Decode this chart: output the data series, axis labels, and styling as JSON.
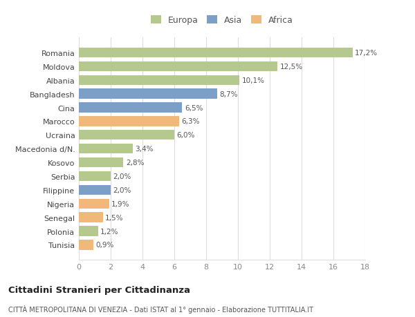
{
  "categories": [
    "Tunisia",
    "Polonia",
    "Senegal",
    "Nigeria",
    "Filippine",
    "Serbia",
    "Kosovo",
    "Macedonia d/N.",
    "Ucraina",
    "Marocco",
    "Cina",
    "Bangladesh",
    "Albania",
    "Moldova",
    "Romania"
  ],
  "values": [
    0.9,
    1.2,
    1.5,
    1.9,
    2.0,
    2.0,
    2.8,
    3.4,
    6.0,
    6.3,
    6.5,
    8.7,
    10.1,
    12.5,
    17.2
  ],
  "labels": [
    "0,9%",
    "1,2%",
    "1,5%",
    "1,9%",
    "2,0%",
    "2,0%",
    "2,8%",
    "3,4%",
    "6,0%",
    "6,3%",
    "6,5%",
    "8,7%",
    "10,1%",
    "12,5%",
    "17,2%"
  ],
  "continent": [
    "Africa",
    "Europa",
    "Africa",
    "Africa",
    "Asia",
    "Europa",
    "Europa",
    "Europa",
    "Europa",
    "Africa",
    "Asia",
    "Asia",
    "Europa",
    "Europa",
    "Europa"
  ],
  "colors": {
    "Europa": "#b5c98e",
    "Asia": "#7b9fc7",
    "Africa": "#f0b97a"
  },
  "legend_entries": [
    "Europa",
    "Asia",
    "Africa"
  ],
  "title1": "Cittadini Stranieri per Cittadinanza",
  "title2": "CITTÀ METROPOLITANA DI VENEZIA - Dati ISTAT al 1° gennaio - Elaborazione TUTTITALIA.IT",
  "xlim": [
    0,
    18
  ],
  "xticks": [
    0,
    2,
    4,
    6,
    8,
    10,
    12,
    14,
    16,
    18
  ],
  "background_color": "#ffffff",
  "grid_color": "#dddddd",
  "bar_height": 0.72,
  "figsize": [
    6.0,
    4.6
  ],
  "dpi": 100
}
